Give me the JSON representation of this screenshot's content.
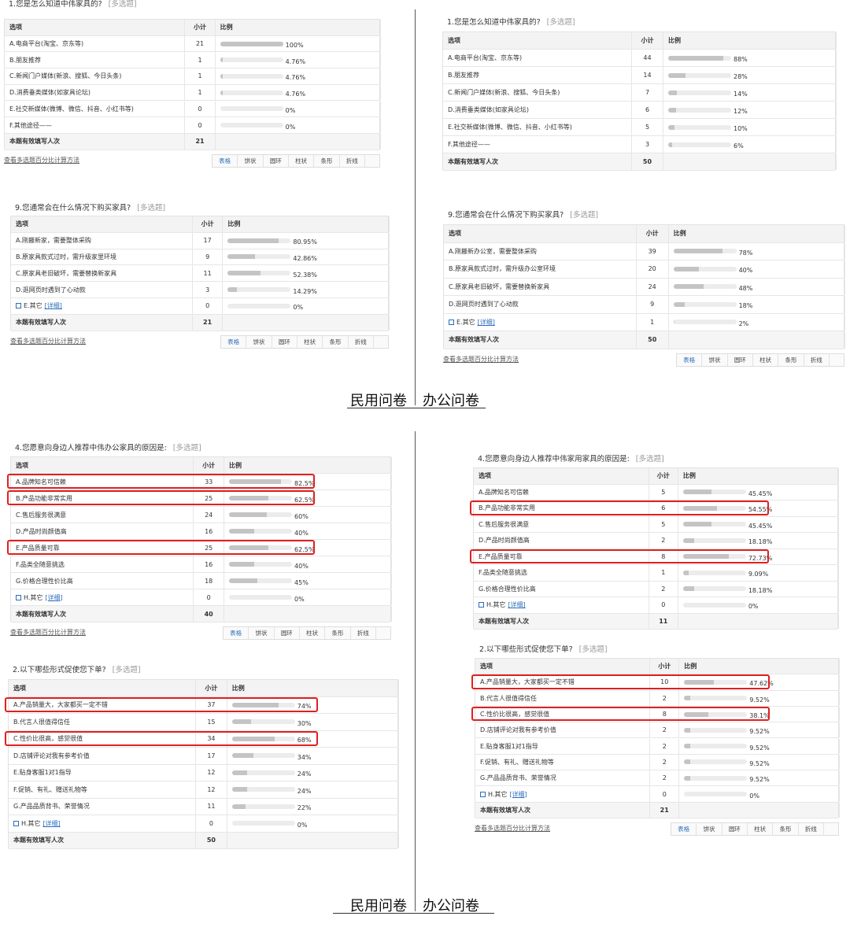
{
  "common": {
    "headers": [
      "选项",
      "小计",
      "比例"
    ],
    "tag": "[多选题]",
    "total_label": "本题有效填写人次",
    "method_link": "查看多选题百分比计算方法",
    "toolbar": [
      "表格",
      "饼状",
      "圆环",
      "柱状",
      "条形",
      "折线"
    ]
  },
  "sections": [
    {
      "caption_left": "民用问卷",
      "caption_right": "办公问卷",
      "left": [
        {
          "title": "1.您是怎么知道中伟家具的?",
          "toolbar": true,
          "highlight_rows": [],
          "total": 21,
          "rows": [
            {
              "option": "A.电商平台(淘宝、京东等)",
              "count": 21,
              "percent": 100,
              "percent_label": "100%"
            },
            {
              "option": "B.朋友推荐",
              "count": 1,
              "percent": 4.76,
              "percent_label": "4.76%"
            },
            {
              "option": "C.新闻门户媒体(新浪、搜狐、今日头条)",
              "count": 1,
              "percent": 4.76,
              "percent_label": "4.76%"
            },
            {
              "option": "D.消费垂类媒体(如家具论坛)",
              "count": 1,
              "percent": 4.76,
              "percent_label": "4.76%"
            },
            {
              "option": "E.社交新媒体(微博、微信、抖音、小红书等)",
              "count": 0,
              "percent": 0,
              "percent_label": "0%"
            },
            {
              "option": "F.其他途径——",
              "count": 0,
              "percent": 0,
              "percent_label": "0%"
            }
          ]
        },
        {
          "title": "9.您通常会在什么情况下购买家具?",
          "toolbar": true,
          "highlight_rows": [],
          "total": 21,
          "rows": [
            {
              "option": "A.刚搬新家，需要整体采购",
              "count": 17,
              "percent": 80.95,
              "percent_label": "80.95%"
            },
            {
              "option": "B.原家具款式过时，需升级家里环境",
              "count": 9,
              "percent": 42.86,
              "percent_label": "42.86%"
            },
            {
              "option": "C.原家具老旧破坏，需要替换新家具",
              "count": 11,
              "percent": 52.38,
              "percent_label": "52.38%"
            },
            {
              "option": "D.逛网页时遇到了心动款",
              "count": 3,
              "percent": 14.29,
              "percent_label": "14.29%"
            },
            {
              "option": "E.其它",
              "link": "[详细]",
              "count": 0,
              "percent": 0,
              "percent_label": "0%"
            }
          ]
        }
      ],
      "right": [
        {
          "title": "1.您是怎么知道中伟家具的?",
          "toolbar": false,
          "highlight_rows": [],
          "total": 50,
          "rows": [
            {
              "option": "A.电商平台(淘宝、京东等)",
              "count": 44,
              "percent": 88,
              "percent_label": "88%"
            },
            {
              "option": "B.朋友推荐",
              "count": 14,
              "percent": 28,
              "percent_label": "28%"
            },
            {
              "option": "C.新闻门户媒体(新浪、搜狐、今日头条)",
              "count": 7,
              "percent": 14,
              "percent_label": "14%"
            },
            {
              "option": "D.消费垂类媒体(如家具论坛)",
              "count": 6,
              "percent": 12,
              "percent_label": "12%"
            },
            {
              "option": "E.社交新媒体(微博、微信、抖音、小红书等)",
              "count": 5,
              "percent": 10,
              "percent_label": "10%"
            },
            {
              "option": "F.其他途径——",
              "count": 3,
              "percent": 6,
              "percent_label": "6%"
            }
          ]
        },
        {
          "title": "9.您通常会在什么情况下购买家具?",
          "toolbar": true,
          "highlight_rows": [],
          "total": 50,
          "rows": [
            {
              "option": "A.刚搬新办公室，需要整体采购",
              "count": 39,
              "percent": 78,
              "percent_label": "78%"
            },
            {
              "option": "B.原家具款式过时，需升级办公室环境",
              "count": 20,
              "percent": 40,
              "percent_label": "40%"
            },
            {
              "option": "C.原家具老旧破坏，需要替换新家具",
              "count": 24,
              "percent": 48,
              "percent_label": "48%"
            },
            {
              "option": "D.逛网页时遇到了心动款",
              "count": 9,
              "percent": 18,
              "percent_label": "18%"
            },
            {
              "option": "E.其它",
              "link": "[详细]",
              "count": 1,
              "percent": 2,
              "percent_label": "2%"
            }
          ]
        }
      ]
    },
    {
      "caption_left": "民用问卷",
      "caption_right": "办公问卷",
      "left": [
        {
          "title": "4.您愿意向身边人推荐中伟办公家具的原因是:",
          "toolbar": true,
          "highlight_rows": [
            0,
            1,
            4
          ],
          "total": 40,
          "rows": [
            {
              "option": "A.品牌知名可信赖",
              "count": 33,
              "percent": 82.5,
              "percent_label": "82.5%"
            },
            {
              "option": "B.产品功能非常实用",
              "count": 25,
              "percent": 62.5,
              "percent_label": "62.5%"
            },
            {
              "option": "C.售后服务很满意",
              "count": 24,
              "percent": 60,
              "percent_label": "60%"
            },
            {
              "option": "D.产品时尚颜值高",
              "count": 16,
              "percent": 40,
              "percent_label": "40%"
            },
            {
              "option": "E.产品质量可靠",
              "count": 25,
              "percent": 62.5,
              "percent_label": "62.5%"
            },
            {
              "option": "F.品类全随意挑选",
              "count": 16,
              "percent": 40,
              "percent_label": "40%"
            },
            {
              "option": "G.价格合理性价比高",
              "count": 18,
              "percent": 45,
              "percent_label": "45%"
            },
            {
              "option": "H.其它",
              "link": "[详细]",
              "count": 0,
              "percent": 0,
              "percent_label": "0%"
            }
          ]
        },
        {
          "title": "2.以下哪些形式促使您下单?",
          "toolbar": false,
          "highlight_rows": [
            0,
            2
          ],
          "total": 50,
          "rows": [
            {
              "option": "A.产品销量大，大家都买一定不错",
              "count": 37,
              "percent": 74,
              "percent_label": "74%"
            },
            {
              "option": "B.代言人很值得信任",
              "count": 15,
              "percent": 30,
              "percent_label": "30%"
            },
            {
              "option": "C.性价比很高，感觉很值",
              "count": 34,
              "percent": 68,
              "percent_label": "68%"
            },
            {
              "option": "D.店铺评论对我有参考价值",
              "count": 17,
              "percent": 34,
              "percent_label": "34%"
            },
            {
              "option": "E.贴身客服1对1指导",
              "count": 12,
              "percent": 24,
              "percent_label": "24%"
            },
            {
              "option": "F.促销、有礼、赠送礼物等",
              "count": 12,
              "percent": 24,
              "percent_label": "24%"
            },
            {
              "option": "G.产品品质背书、荣誉情况",
              "count": 11,
              "percent": 22,
              "percent_label": "22%"
            },
            {
              "option": "H.其它",
              "link": "[详细]",
              "count": 0,
              "percent": 0,
              "percent_label": "0%"
            }
          ]
        }
      ],
      "right": [
        {
          "title": "4.您愿意向身边人推荐中伟家用家具的原因是:",
          "toolbar": false,
          "highlight_rows": [
            1,
            4
          ],
          "total": 11,
          "rows": [
            {
              "option": "A.品牌知名可信赖",
              "count": 5,
              "percent": 45.45,
              "percent_label": "45.45%"
            },
            {
              "option": "B.产品功能非常实用",
              "count": 6,
              "percent": 54.55,
              "percent_label": "54.55%"
            },
            {
              "option": "C.售后服务很满意",
              "count": 5,
              "percent": 45.45,
              "percent_label": "45.45%"
            },
            {
              "option": "D.产品时尚颜值高",
              "count": 2,
              "percent": 18.18,
              "percent_label": "18.18%"
            },
            {
              "option": "E.产品质量可靠",
              "count": 8,
              "percent": 72.73,
              "percent_label": "72.73%"
            },
            {
              "option": "F.品类全随意挑选",
              "count": 1,
              "percent": 9.09,
              "percent_label": "9.09%"
            },
            {
              "option": "G.价格合理性价比高",
              "count": 2,
              "percent": 18.18,
              "percent_label": "18.18%"
            },
            {
              "option": "H.其它",
              "link": "[详细]",
              "count": 0,
              "percent": 0,
              "percent_label": "0%"
            }
          ]
        },
        {
          "title": "2.以下哪些形式促使您下单?",
          "toolbar": true,
          "highlight_rows": [
            0,
            2
          ],
          "total": 21,
          "rows": [
            {
              "option": "A.产品销量大，大家都买一定不错",
              "count": 10,
              "percent": 47.62,
              "percent_label": "47.62%"
            },
            {
              "option": "B.代言人很值得信任",
              "count": 2,
              "percent": 9.52,
              "percent_label": "9.52%"
            },
            {
              "option": "C.性价比很高，感觉很值",
              "count": 8,
              "percent": 38.1,
              "percent_label": "38.1%"
            },
            {
              "option": "D.店铺评论对我有参考价值",
              "count": 2,
              "percent": 9.52,
              "percent_label": "9.52%"
            },
            {
              "option": "E.贴身客服1对1指导",
              "count": 2,
              "percent": 9.52,
              "percent_label": "9.52%"
            },
            {
              "option": "F.促销、有礼、赠送礼物等",
              "count": 2,
              "percent": 9.52,
              "percent_label": "9.52%"
            },
            {
              "option": "G.产品品质背书、荣誉情况",
              "count": 2,
              "percent": 9.52,
              "percent_label": "9.52%"
            },
            {
              "option": "H.其它",
              "link": "[详细]",
              "count": 0,
              "percent": 0,
              "percent_label": "0%"
            }
          ]
        }
      ]
    }
  ]
}
